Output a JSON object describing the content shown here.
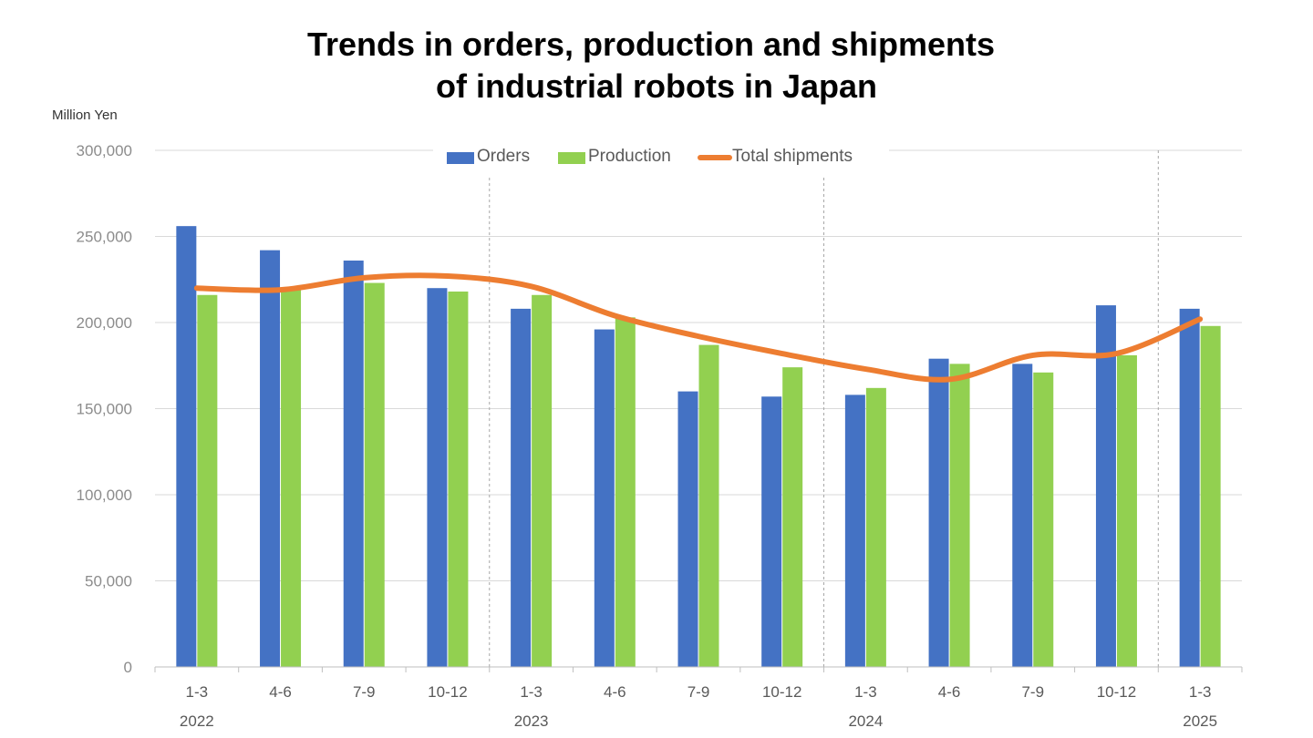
{
  "chart_data": {
    "type": "bar",
    "title_lines": [
      "Trends in orders, production and shipments",
      "of industrial robots in Japan"
    ],
    "ylabel": "Million Yen",
    "ylim": [
      0,
      300000
    ],
    "yticks": [
      0,
      50000,
      100000,
      150000,
      200000,
      250000,
      300000
    ],
    "ytick_labels": [
      "0",
      "50,000",
      "100,000",
      "150,000",
      "200,000",
      "250,000",
      "300,000"
    ],
    "categories": [
      "1-3",
      "4-6",
      "7-9",
      "10-12",
      "1-3",
      "4-6",
      "7-9",
      "10-12",
      "1-3",
      "4-6",
      "7-9",
      "10-12",
      "1-3"
    ],
    "year_labels": [
      {
        "label": "2022",
        "category_index": 0
      },
      {
        "label": "2023",
        "category_index": 4
      },
      {
        "label": "2024",
        "category_index": 8
      },
      {
        "label": "2025",
        "category_index": 12
      }
    ],
    "year_separators_after_index": [
      3,
      7,
      11
    ],
    "legend_position": "top",
    "series": [
      {
        "name": "Orders",
        "kind": "bar",
        "color": "#4472c4",
        "values": [
          256000,
          242000,
          236000,
          220000,
          208000,
          196000,
          160000,
          157000,
          158000,
          179000,
          176000,
          210000,
          208000
        ]
      },
      {
        "name": "Production",
        "kind": "bar",
        "color": "#92d050",
        "values": [
          216000,
          220000,
          223000,
          218000,
          216000,
          203000,
          187000,
          174000,
          162000,
          176000,
          171000,
          181000,
          198000
        ]
      },
      {
        "name": "Total shipments",
        "kind": "line",
        "color": "#ed7d31",
        "values": [
          220000,
          219000,
          226000,
          227000,
          221000,
          204000,
          192000,
          182000,
          173000,
          167000,
          181000,
          182000,
          202000
        ]
      }
    ]
  }
}
